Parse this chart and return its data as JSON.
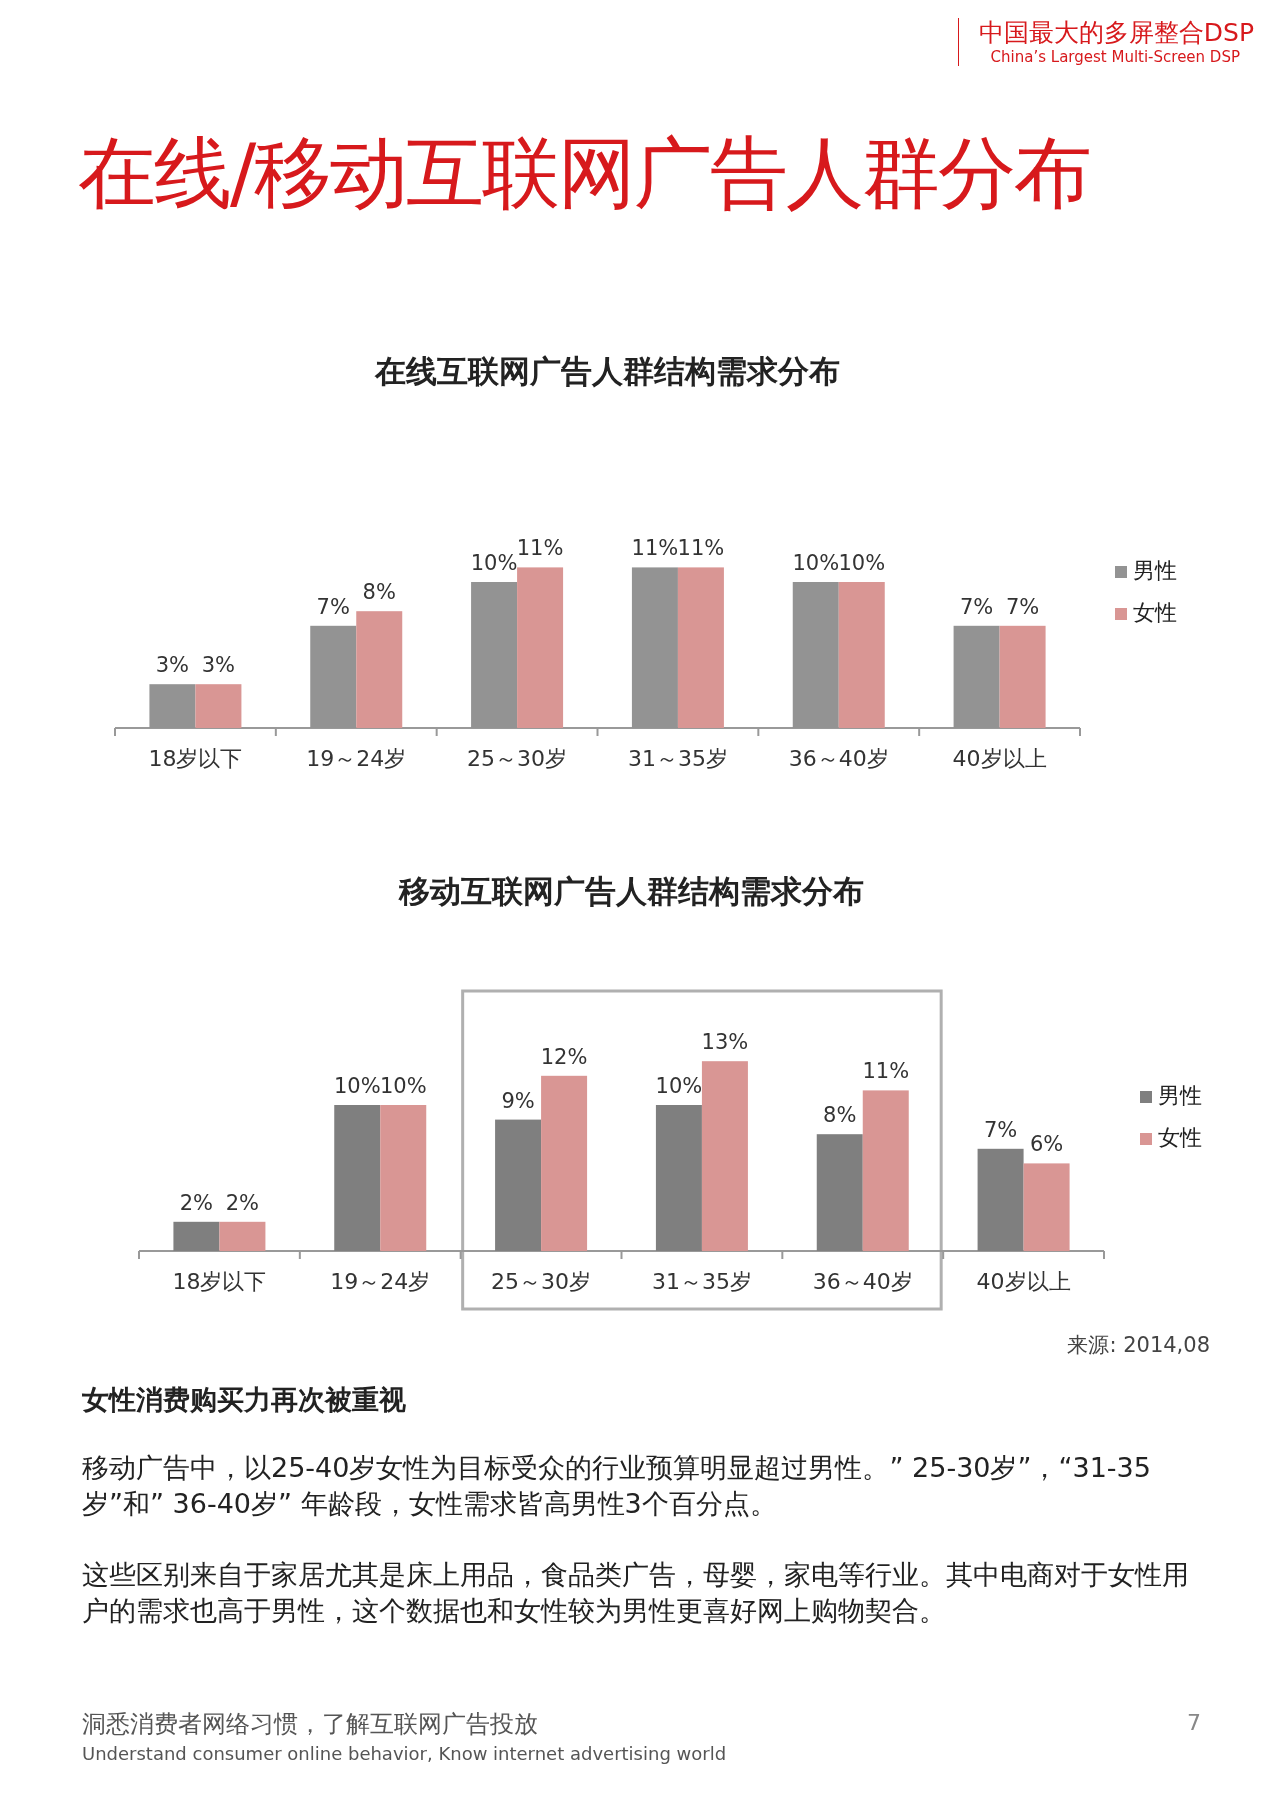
{
  "chart_data": [
    {
      "type": "other",
      "title": "在线/移动互联网广告人群分布",
      "annotations": [
        "中国最大的多屏整合DSP",
        "China’s Largest Multi-Screen DSP"
      ]
    },
    {
      "type": "bar",
      "title": "在线互联网广告人群结构需求分布",
      "categories": [
        "18岁以下",
        "19～24岁",
        "25～30岁",
        "31～35岁",
        "36～40岁",
        "40岁以上"
      ],
      "legend": "right",
      "series": [
        {
          "name": "男性",
          "color": "#939393",
          "values": [
            3,
            7,
            10,
            11,
            10,
            7
          ],
          "value_labels": [
            "3%",
            "7%",
            "10%",
            "11%",
            "10%",
            "7%"
          ]
        },
        {
          "name": "女性",
          "color": "#d99694",
          "values": [
            3,
            8,
            11,
            11,
            10,
            7
          ],
          "value_labels": [
            "3%",
            "8%",
            "11%",
            "11%",
            "10%",
            "7%"
          ]
        }
      ]
    },
    {
      "type": "bar",
      "title": "移动互联网广告人群结构需求分布",
      "categories": [
        "18岁以下",
        "19～24岁",
        "25～30岁",
        "31～35岁",
        "36～40岁",
        "40岁以上"
      ],
      "legend": "right",
      "series": [
        {
          "name": "男性",
          "color": "#7f7f7f",
          "values": [
            2,
            10,
            9,
            10,
            8,
            7
          ],
          "value_labels": [
            "2%",
            "10%",
            "9%",
            "10%",
            "8%",
            "7%"
          ]
        },
        {
          "name": "女性",
          "color": "#d99694",
          "values": [
            2,
            10,
            12,
            13,
            11,
            6
          ],
          "value_labels": [
            "2%",
            "10%",
            "12%",
            "13%",
            "11%",
            "6%"
          ]
        }
      ],
      "annotations": [
        "来源: 2014,08"
      ]
    },
    {
      "type": "other",
      "title": "女性消费购买力再次被重视",
      "annotations": [
        "移动广告中，以25-40岁女性为目标受众的行业预算明显超过男性。” 25-30岁”，“31-35岁”和” 36-40岁” 年龄段，女性需求皆高男性3个百分点。",
        "这些区别来自于家居尤其是床上用品，食品类广告，母婴，家电等行业。其中电商对于女性用户的需求也高于男性，这个数据也和女性较为男性更喜好网上购物契合。",
        "洞悉消费者网络习惯，了解互联网广告投放",
        "Understand consumer online behavior, Know internet advertising world",
        "7"
      ]
    }
  ]
}
